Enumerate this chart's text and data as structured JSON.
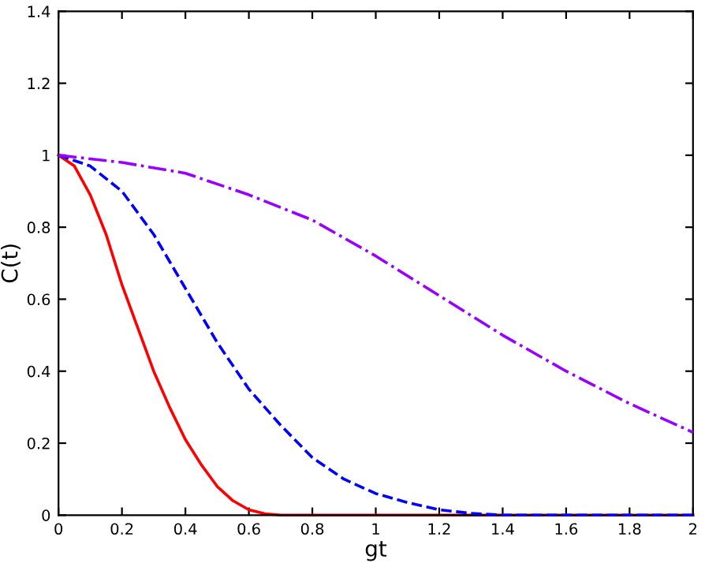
{
  "chart_data": {
    "type": "line",
    "xlabel": "gt",
    "ylabel": "C(t)",
    "xlim": [
      0,
      2
    ],
    "ylim": [
      0,
      1.4
    ],
    "xticks": [
      0,
      0.2,
      0.4,
      0.6,
      0.8,
      1,
      1.2,
      1.4,
      1.6,
      1.8,
      2
    ],
    "yticks": [
      0,
      0.2,
      0.4,
      0.6,
      0.8,
      1,
      1.2,
      1.4
    ],
    "grid": false,
    "legend": false,
    "series": [
      {
        "color": "#ff0000",
        "line_style": "solid",
        "x": [
          0,
          0.05,
          0.1,
          0.15,
          0.2,
          0.25,
          0.3,
          0.35,
          0.4,
          0.45,
          0.5,
          0.55,
          0.6,
          0.65,
          0.7,
          0.8,
          1,
          1.2,
          1.4,
          1.6,
          1.8,
          2
        ],
        "values": [
          1,
          0.97,
          0.89,
          0.78,
          0.64,
          0.52,
          0.4,
          0.3,
          0.21,
          0.14,
          0.08,
          0.04,
          0.015,
          0.004,
          0,
          0,
          0,
          0,
          0,
          0,
          0,
          0
        ]
      },
      {
        "color": "#0000ff",
        "line_style": "dashed",
        "x": [
          0,
          0.1,
          0.2,
          0.3,
          0.4,
          0.5,
          0.6,
          0.7,
          0.8,
          0.9,
          1,
          1.1,
          1.2,
          1.3,
          1.4,
          1.6,
          1.8,
          2
        ],
        "values": [
          1,
          0.97,
          0.9,
          0.78,
          0.63,
          0.48,
          0.35,
          0.25,
          0.16,
          0.1,
          0.06,
          0.035,
          0.015,
          0.005,
          0,
          0,
          0,
          0
        ]
      },
      {
        "color": "#9900ff",
        "line_style": "dashdot",
        "x": [
          0,
          0.2,
          0.4,
          0.6,
          0.8,
          1,
          1.2,
          1.4,
          1.6,
          1.8,
          2
        ],
        "values": [
          1,
          0.98,
          0.95,
          0.89,
          0.82,
          0.72,
          0.61,
          0.5,
          0.4,
          0.31,
          0.23
        ]
      }
    ]
  }
}
